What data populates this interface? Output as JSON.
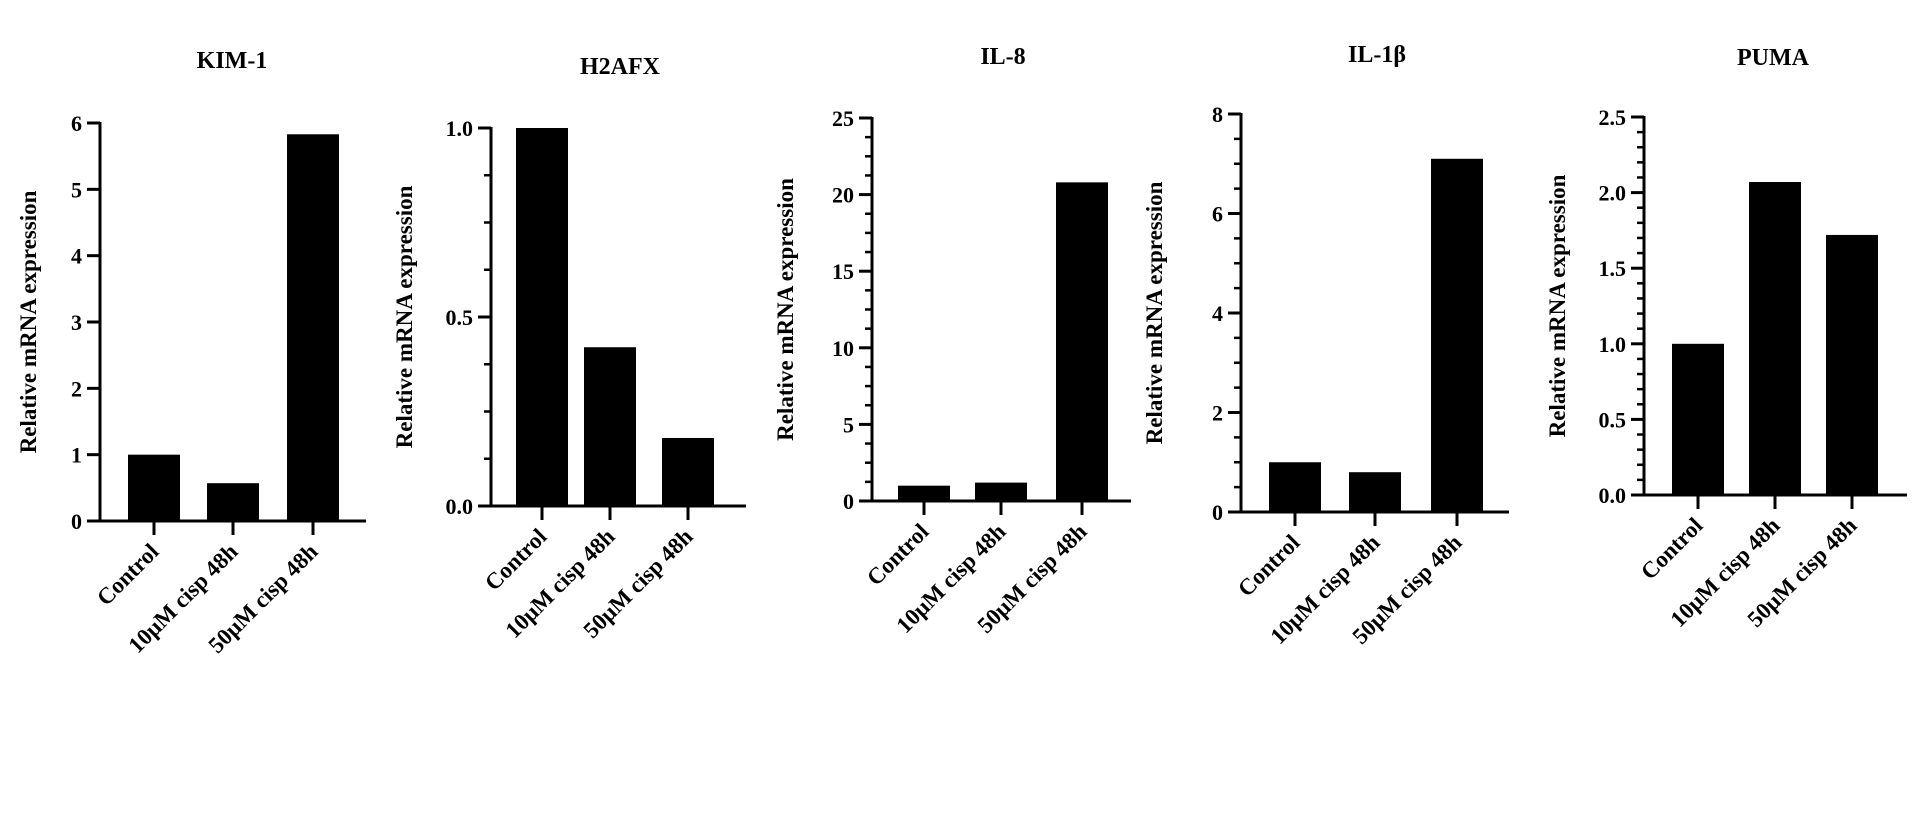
{
  "colors": {
    "bar": "#000000",
    "axis": "#000000",
    "background": "#ffffff"
  },
  "chart_data": [
    {
      "type": "bar",
      "title": "KIM-1",
      "ylabel": "Relative mRNA expression",
      "xlabel": "",
      "categories": [
        "Control",
        "10μM cisp 48h",
        "50μM cisp 48h"
      ],
      "values": [
        1.0,
        0.57,
        5.83
      ],
      "ylim": [
        0,
        6
      ],
      "yticks": [
        0,
        1,
        2,
        3,
        4,
        5,
        6
      ],
      "ytick_labels": [
        "0",
        "1",
        "2",
        "3",
        "4",
        "5",
        "6"
      ],
      "minor_ticks_per_major": 1,
      "grid": false,
      "legend": "none"
    },
    {
      "type": "bar",
      "title": "H2AFX",
      "ylabel": "Relative mRNA expression",
      "xlabel": "",
      "categories": [
        "Control",
        "10μM cisp 48h",
        "50μM cisp 48h"
      ],
      "values": [
        1.0,
        0.42,
        0.18
      ],
      "ylim": [
        0,
        1.0
      ],
      "yticks": [
        0,
        0.5,
        1.0
      ],
      "ytick_labels": [
        "0.0",
        "0.5",
        "1.0"
      ],
      "minor_ticks_per_major": 4,
      "grid": false,
      "legend": "none"
    },
    {
      "type": "bar",
      "title": "IL-8",
      "ylabel": "Relative mRNA expression",
      "xlabel": "",
      "categories": [
        "Control",
        "10μM cisp 48h",
        "50μM cisp 48h"
      ],
      "values": [
        1.0,
        1.2,
        20.8
      ],
      "ylim": [
        0,
        25
      ],
      "yticks": [
        0,
        5,
        10,
        15,
        20,
        25
      ],
      "ytick_labels": [
        "0",
        "5",
        "10",
        "15",
        "20",
        "25"
      ],
      "minor_ticks_per_major": 4,
      "grid": false,
      "legend": "none"
    },
    {
      "type": "bar",
      "title": "IL-1β",
      "ylabel": "Relative mRNA expression",
      "xlabel": "",
      "categories": [
        "Control",
        "10μM cisp 48h",
        "50μM cisp 48h"
      ],
      "values": [
        1.0,
        0.8,
        7.1
      ],
      "ylim": [
        0,
        8
      ],
      "yticks": [
        0,
        2,
        4,
        6,
        8
      ],
      "ytick_labels": [
        "0",
        "2",
        "4",
        "6",
        "8"
      ],
      "minor_ticks_per_major": 4,
      "grid": false,
      "legend": "none"
    },
    {
      "type": "bar",
      "title": "PUMA",
      "ylabel": "Relative mRNA expression",
      "xlabel": "",
      "categories": [
        "Control",
        "10μM cisp 48h",
        "50μM cisp 48h"
      ],
      "values": [
        1.0,
        2.07,
        1.72
      ],
      "ylim": [
        0,
        2.5
      ],
      "yticks": [
        0,
        0.5,
        1.0,
        1.5,
        2.0,
        2.5
      ],
      "ytick_labels": [
        "0.0",
        "0.5",
        "1.0",
        "1.5",
        "2.0",
        "2.5"
      ],
      "minor_ticks_per_major": 5,
      "grid": false,
      "legend": "none"
    }
  ]
}
